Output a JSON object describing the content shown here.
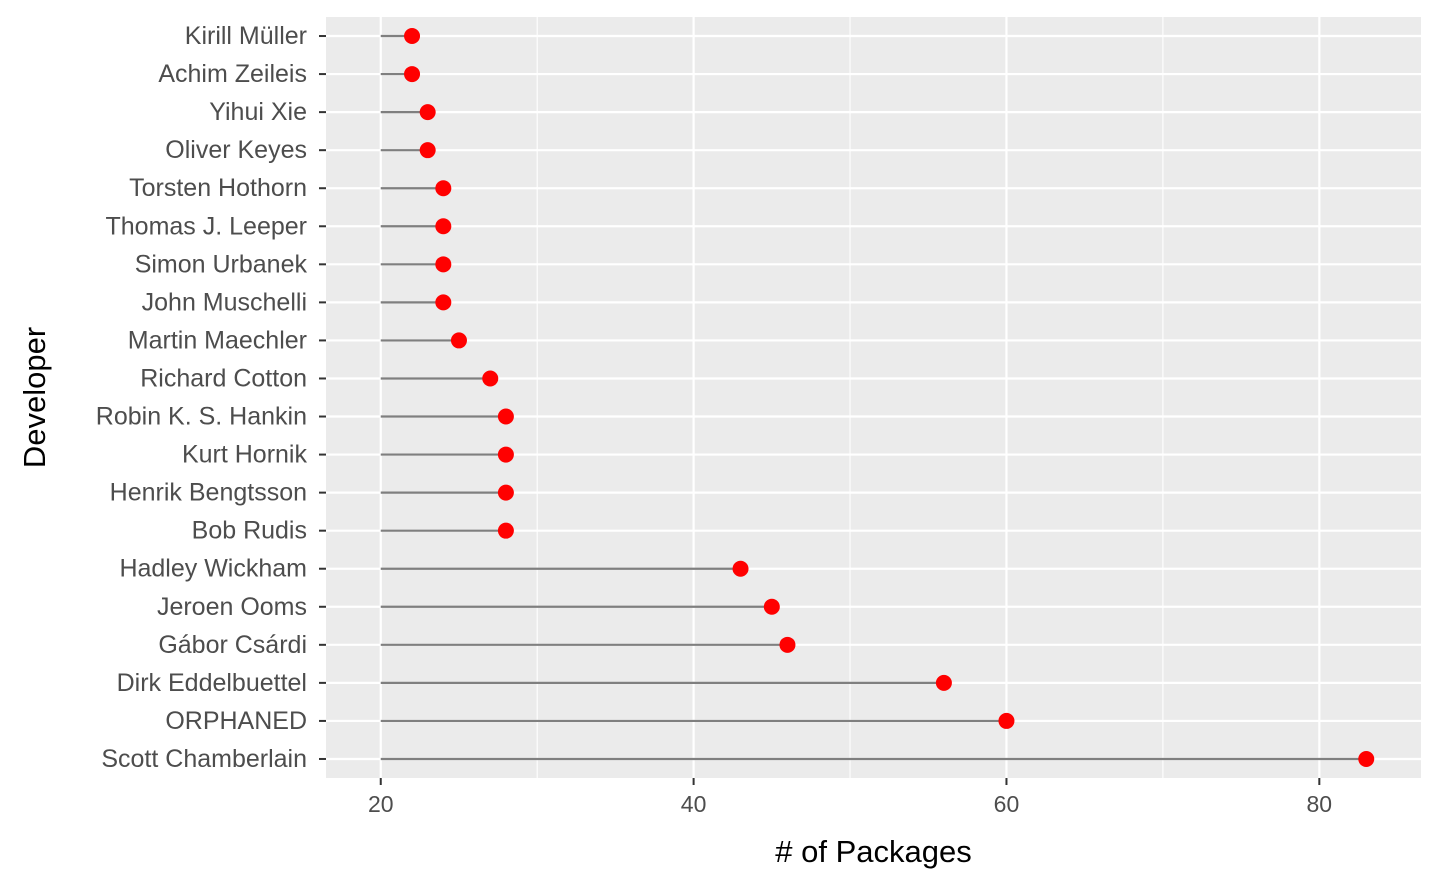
{
  "chart_data": {
    "type": "lollipop",
    "title": "",
    "xlabel": "# of Packages",
    "ylabel": "Developer",
    "xlim": [
      16.5,
      86.5
    ],
    "x_ticks": [
      20,
      40,
      60,
      80
    ],
    "x_tick_labels": [
      "20",
      "40",
      "60",
      "80"
    ],
    "baseline": 20,
    "grid": true,
    "legend": "none",
    "colors": {
      "panel_background": "#ebebeb",
      "grid_line": "#ffffff",
      "stem": "#7f7f7f",
      "point": "#ff0000",
      "tick_label": "#4d4d4d",
      "axis_title": "#000000"
    },
    "categories": [
      "Kirill Müller",
      "Achim Zeileis",
      "Yihui Xie",
      "Oliver Keyes",
      "Torsten Hothorn",
      "Thomas J. Leeper",
      "Simon Urbanek",
      "John Muschelli",
      "Martin Maechler",
      "Richard Cotton",
      "Robin K. S. Hankin",
      "Kurt Hornik",
      "Henrik Bengtsson",
      "Bob Rudis",
      "Hadley Wickham",
      "Jeroen Ooms",
      "Gábor Csárdi",
      "Dirk Eddelbuettel",
      "ORPHANED",
      "Scott Chamberlain"
    ],
    "values": [
      22,
      22,
      23,
      23,
      24,
      24,
      24,
      24,
      25,
      27,
      28,
      28,
      28,
      28,
      43,
      45,
      46,
      56,
      60,
      83
    ]
  }
}
